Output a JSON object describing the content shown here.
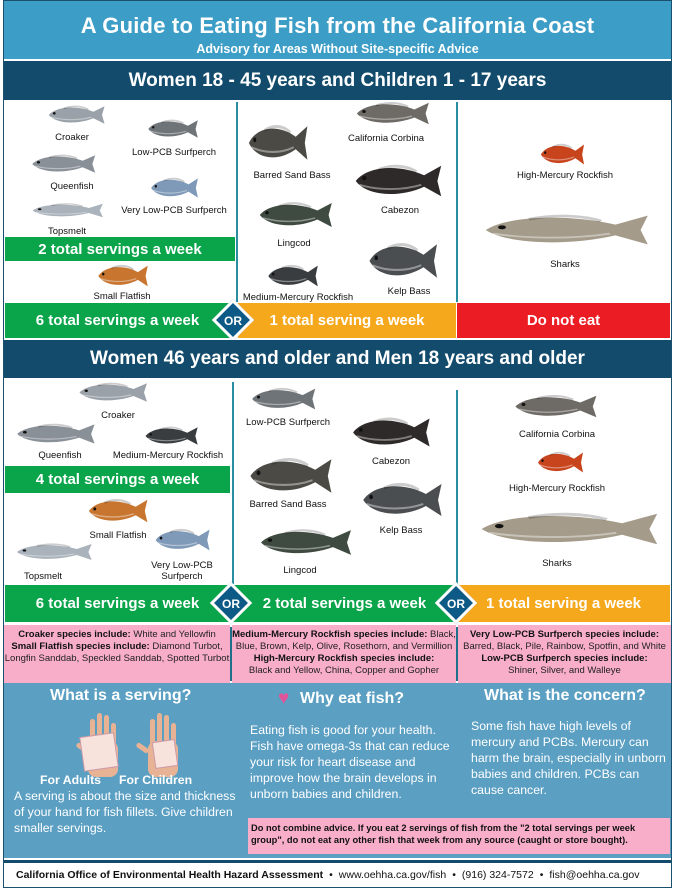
{
  "title": "A Guide to Eating Fish from the California Coast",
  "subtitle": "Advisory for Areas Without Site-specific Advice",
  "colors": {
    "title_band": "#3c9dc6",
    "group_band": "#124b6b",
    "green": "#0aa54a",
    "orange": "#f6a81d",
    "red": "#ec1c24",
    "or_diamond": "#0e5a86",
    "pink": "#f8aec8",
    "info_blue": "#5b9fc3"
  },
  "group1": {
    "heading": "Women 18 - 45 years and Children 1 - 17 years",
    "fish": {
      "croaker": "Croaker",
      "low_pcb_surfperch": "Low-PCB Surfperch",
      "queenfish": "Queenfish",
      "very_low_pcb_surfperch": "Very Low-PCB Surfperch",
      "topsmelt": "Topsmelt",
      "small_flatfish": "Small Flatfish",
      "barred_sand_bass": "Barred Sand Bass",
      "california_corbina": "California Corbina",
      "cabezon": "Cabezon",
      "lingcod": "Lingcod",
      "medium_mercury_rockfish": "Medium-Mercury Rockfish",
      "kelp_bass": "Kelp Bass",
      "high_mercury_rockfish": "High-Mercury Rockfish",
      "sharks": "Sharks"
    },
    "inner_servings": "2 total servings a week",
    "bar": {
      "col1": "6 total servings a week",
      "or": "OR",
      "col2": "1 total serving a week",
      "col3": "Do not eat"
    }
  },
  "group2": {
    "heading": "Women 46 years and older and Men 18 years and older",
    "fish": {
      "croaker": "Croaker",
      "queenfish": "Queenfish",
      "medium_mercury_rockfish": "Medium-Mercury Rockfish",
      "small_flatfish": "Small Flatfish",
      "topsmelt": "Topsmelt",
      "very_low_pcb_surfperch": "Very Low-PCB Surfperch",
      "low_pcb_surfperch": "Low-PCB Surfperch",
      "barred_sand_bass": "Barred Sand Bass",
      "cabezon": "Cabezon",
      "kelp_bass": "Kelp Bass",
      "lingcod": "Lingcod",
      "california_corbina": "California Corbina",
      "high_mercury_rockfish": "High-Mercury Rockfish",
      "sharks": "Sharks"
    },
    "inner_servings": "4 total servings a week",
    "bar": {
      "col1": "6 total servings a week",
      "or1": "OR",
      "col2": "2 total servings a week",
      "or2": "OR",
      "col3": "1 total serving a week"
    }
  },
  "species_notes": {
    "croaker_label": "Croaker species include:",
    "croaker_text": "White and Yellowfin",
    "flatfish_label": "Small Flatfish species include:",
    "flatfish_text": "Diamond Turbot, Longfin Sanddab, Speckled Sanddab, Spotted Turbot",
    "med_rockfish_label": "Medium-Mercury Rockfish species include:",
    "med_rockfish_text": "Black, Blue, Brown, Kelp, Olive, Rosethorn, and Vermillion",
    "high_rockfish_label": "High-Mercury Rockfish species include:",
    "high_rockfish_text": "Black and Yellow, China, Copper and Gopher",
    "vlow_surfperch_label": "Very Low-PCB Surfperch species include:",
    "vlow_surfperch_text": "Barred, Black, Pile, Rainbow, Spotfin, and White",
    "low_surfperch_label": "Low-PCB Surfperch species include:",
    "low_surfperch_text": "Shiner, Silver, and Walleye"
  },
  "info": {
    "serving_title": "What is a serving?",
    "for_adults": "For Adults",
    "for_children": "For Children",
    "serving_text": "A serving is about the size and thickness of your hand for fish fillets. Give children smaller servings.",
    "why_title": "Why eat fish?",
    "why_text": "Eating fish is good for your health. Fish have omega-3s that can reduce your risk for heart disease and improve how the brain develops in unborn babies and children.",
    "concern_title": "What is the concern?",
    "concern_text": "Some fish have high levels of mercury and PCBs. Mercury can harm the brain, especially in unborn babies and children. PCBs can cause cancer.",
    "warning": "Do not combine advice. If you eat 2 servings of fish from the \"2 total servings per week group\", do not eat any other fish that week from any source (caught or store bought)."
  },
  "footer": {
    "org": "California Office of Environmental Health Hazard Assessment",
    "sep": "•",
    "website": "www.oehha.ca.gov/fish",
    "phone": "(916) 324-7572",
    "email": "fish@oehha.ca.gov"
  }
}
